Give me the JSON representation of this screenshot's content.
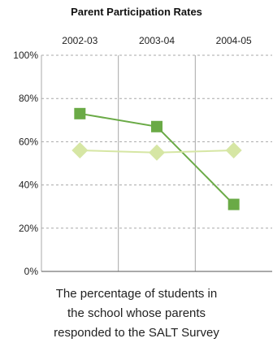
{
  "chart_data": {
    "type": "line",
    "title": "Parent Participation Rates",
    "categories": [
      "2002-03",
      "2003-04",
      "2004-05"
    ],
    "y_ticks": [
      "0%",
      "20%",
      "40%",
      "60%",
      "80%",
      "100%"
    ],
    "ylim": [
      0,
      100
    ],
    "grid": true,
    "series": [
      {
        "values": [
          73,
          67,
          31
        ],
        "color": "#6aaa46",
        "marker": "square"
      },
      {
        "values": [
          56,
          55,
          56
        ],
        "color": "#d6e6a4",
        "marker": "diamond"
      }
    ]
  },
  "caption": {
    "lines": [
      "The percentage of students in",
      "the school whose parents",
      "responded to the SALT Survey"
    ]
  }
}
